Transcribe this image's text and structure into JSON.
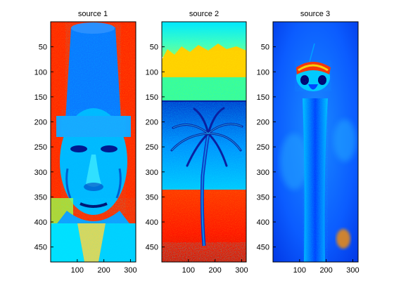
{
  "figure": {
    "panels": [
      {
        "title": "source 1",
        "colormap": "jet",
        "image_content": "jet-colormap portrait of an elderly man wearing a tall cylindrical fez, red background",
        "xticks": [
          "100",
          "200",
          "300"
        ],
        "yticks": [
          "50",
          "100",
          "150",
          "200",
          "250",
          "300",
          "350",
          "400",
          "450"
        ]
      },
      {
        "title": "source 2",
        "colormap": "jet",
        "image_content": "jet-colormap scene of a palm tree on a beach with sea, mountains and cyan sky",
        "xticks": [
          "100",
          "200",
          "300"
        ],
        "yticks": [
          "50",
          "100",
          "150",
          "200",
          "250",
          "300",
          "350",
          "400",
          "450"
        ]
      },
      {
        "title": "source 3",
        "colormap": "jet",
        "image_content": "jet-colormap image of an ostrich head and long neck on a blue background",
        "xticks": [
          "100",
          "200",
          "300"
        ],
        "yticks": [
          "50",
          "100",
          "150",
          "200",
          "250",
          "300",
          "350",
          "400",
          "450"
        ]
      }
    ],
    "colors": {
      "jet_dark_blue": "#00008f",
      "jet_blue": "#0050ff",
      "jet_cyan": "#00ffff",
      "jet_yellow": "#ffff00",
      "jet_red": "#ff2000",
      "jet_dark_red": "#a00000"
    }
  }
}
